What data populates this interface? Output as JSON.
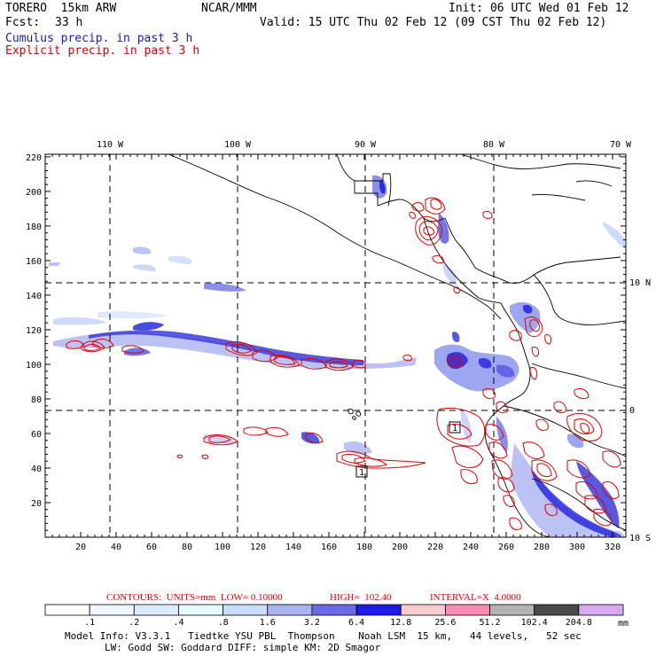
{
  "header": {
    "model": "TORERO  15km ARW",
    "org": "NCAR/MMM",
    "init": "Init: 06 UTC Wed 01 Feb 12",
    "fcst_label": "Fcst:",
    "fcst_hours": "33 h",
    "valid": "Valid: 15 UTC Thu 02 Feb 12 (09 CST Thu 02 Feb 12)",
    "line_cumulus": "Cumulus precip. in past 3 h",
    "line_explicit": "Explicit precip. in past 3 h"
  },
  "colors": {
    "cumulus": "#1a1ab4",
    "explicit": "#e00000",
    "grid": "#000000"
  },
  "map": {
    "x_ticks": [
      "20",
      "40",
      "60",
      "80",
      "100",
      "120",
      "140",
      "160",
      "180",
      "200",
      "220",
      "240",
      "260",
      "280",
      "300",
      "320"
    ],
    "y_ticks": [
      "20",
      "40",
      "60",
      "80",
      "100",
      "120",
      "140",
      "160",
      "180",
      "200",
      "220"
    ],
    "lon_labels": [
      "110 W",
      "100 W",
      "90 W",
      "80 W",
      "70 W"
    ],
    "lat_labels": [
      "10 N",
      "0",
      "10 S"
    ],
    "box_labels": [
      "1",
      "1"
    ]
  },
  "contour_info": {
    "prefix": "CONTOURS:  UNITS=mm  LOW= 0.10000",
    "high": "HIGH=  102.40",
    "interval": "INTERVAL=X  4.0000"
  },
  "colorbar": {
    "units": "mm",
    "levels": [
      ".1",
      ".2",
      ".4",
      ".8",
      "1.6",
      "3.2",
      "6.4",
      "12.8",
      "25.6",
      "51.2",
      "102.4",
      "204.8"
    ],
    "colors": [
      "#ffffff",
      "#eef6ff",
      "#dcebff",
      "#e6fbff",
      "#c8dcff",
      "#a9b4f0",
      "#6a6ae8",
      "#1c1ce6",
      "#f6cccc",
      "#ff8cb4",
      "#b4b4b4",
      "#4a4a4a",
      "#d7aaf0"
    ]
  },
  "footer": {
    "line1": "Model Info: V3.3.1   Tiedtke YSU PBL  Thompson    Noah LSM  15 km,   44 levels,   52 sec",
    "line2": "LW: Godd SW: Goddard DIFF: simple KM: 2D Smagor"
  }
}
